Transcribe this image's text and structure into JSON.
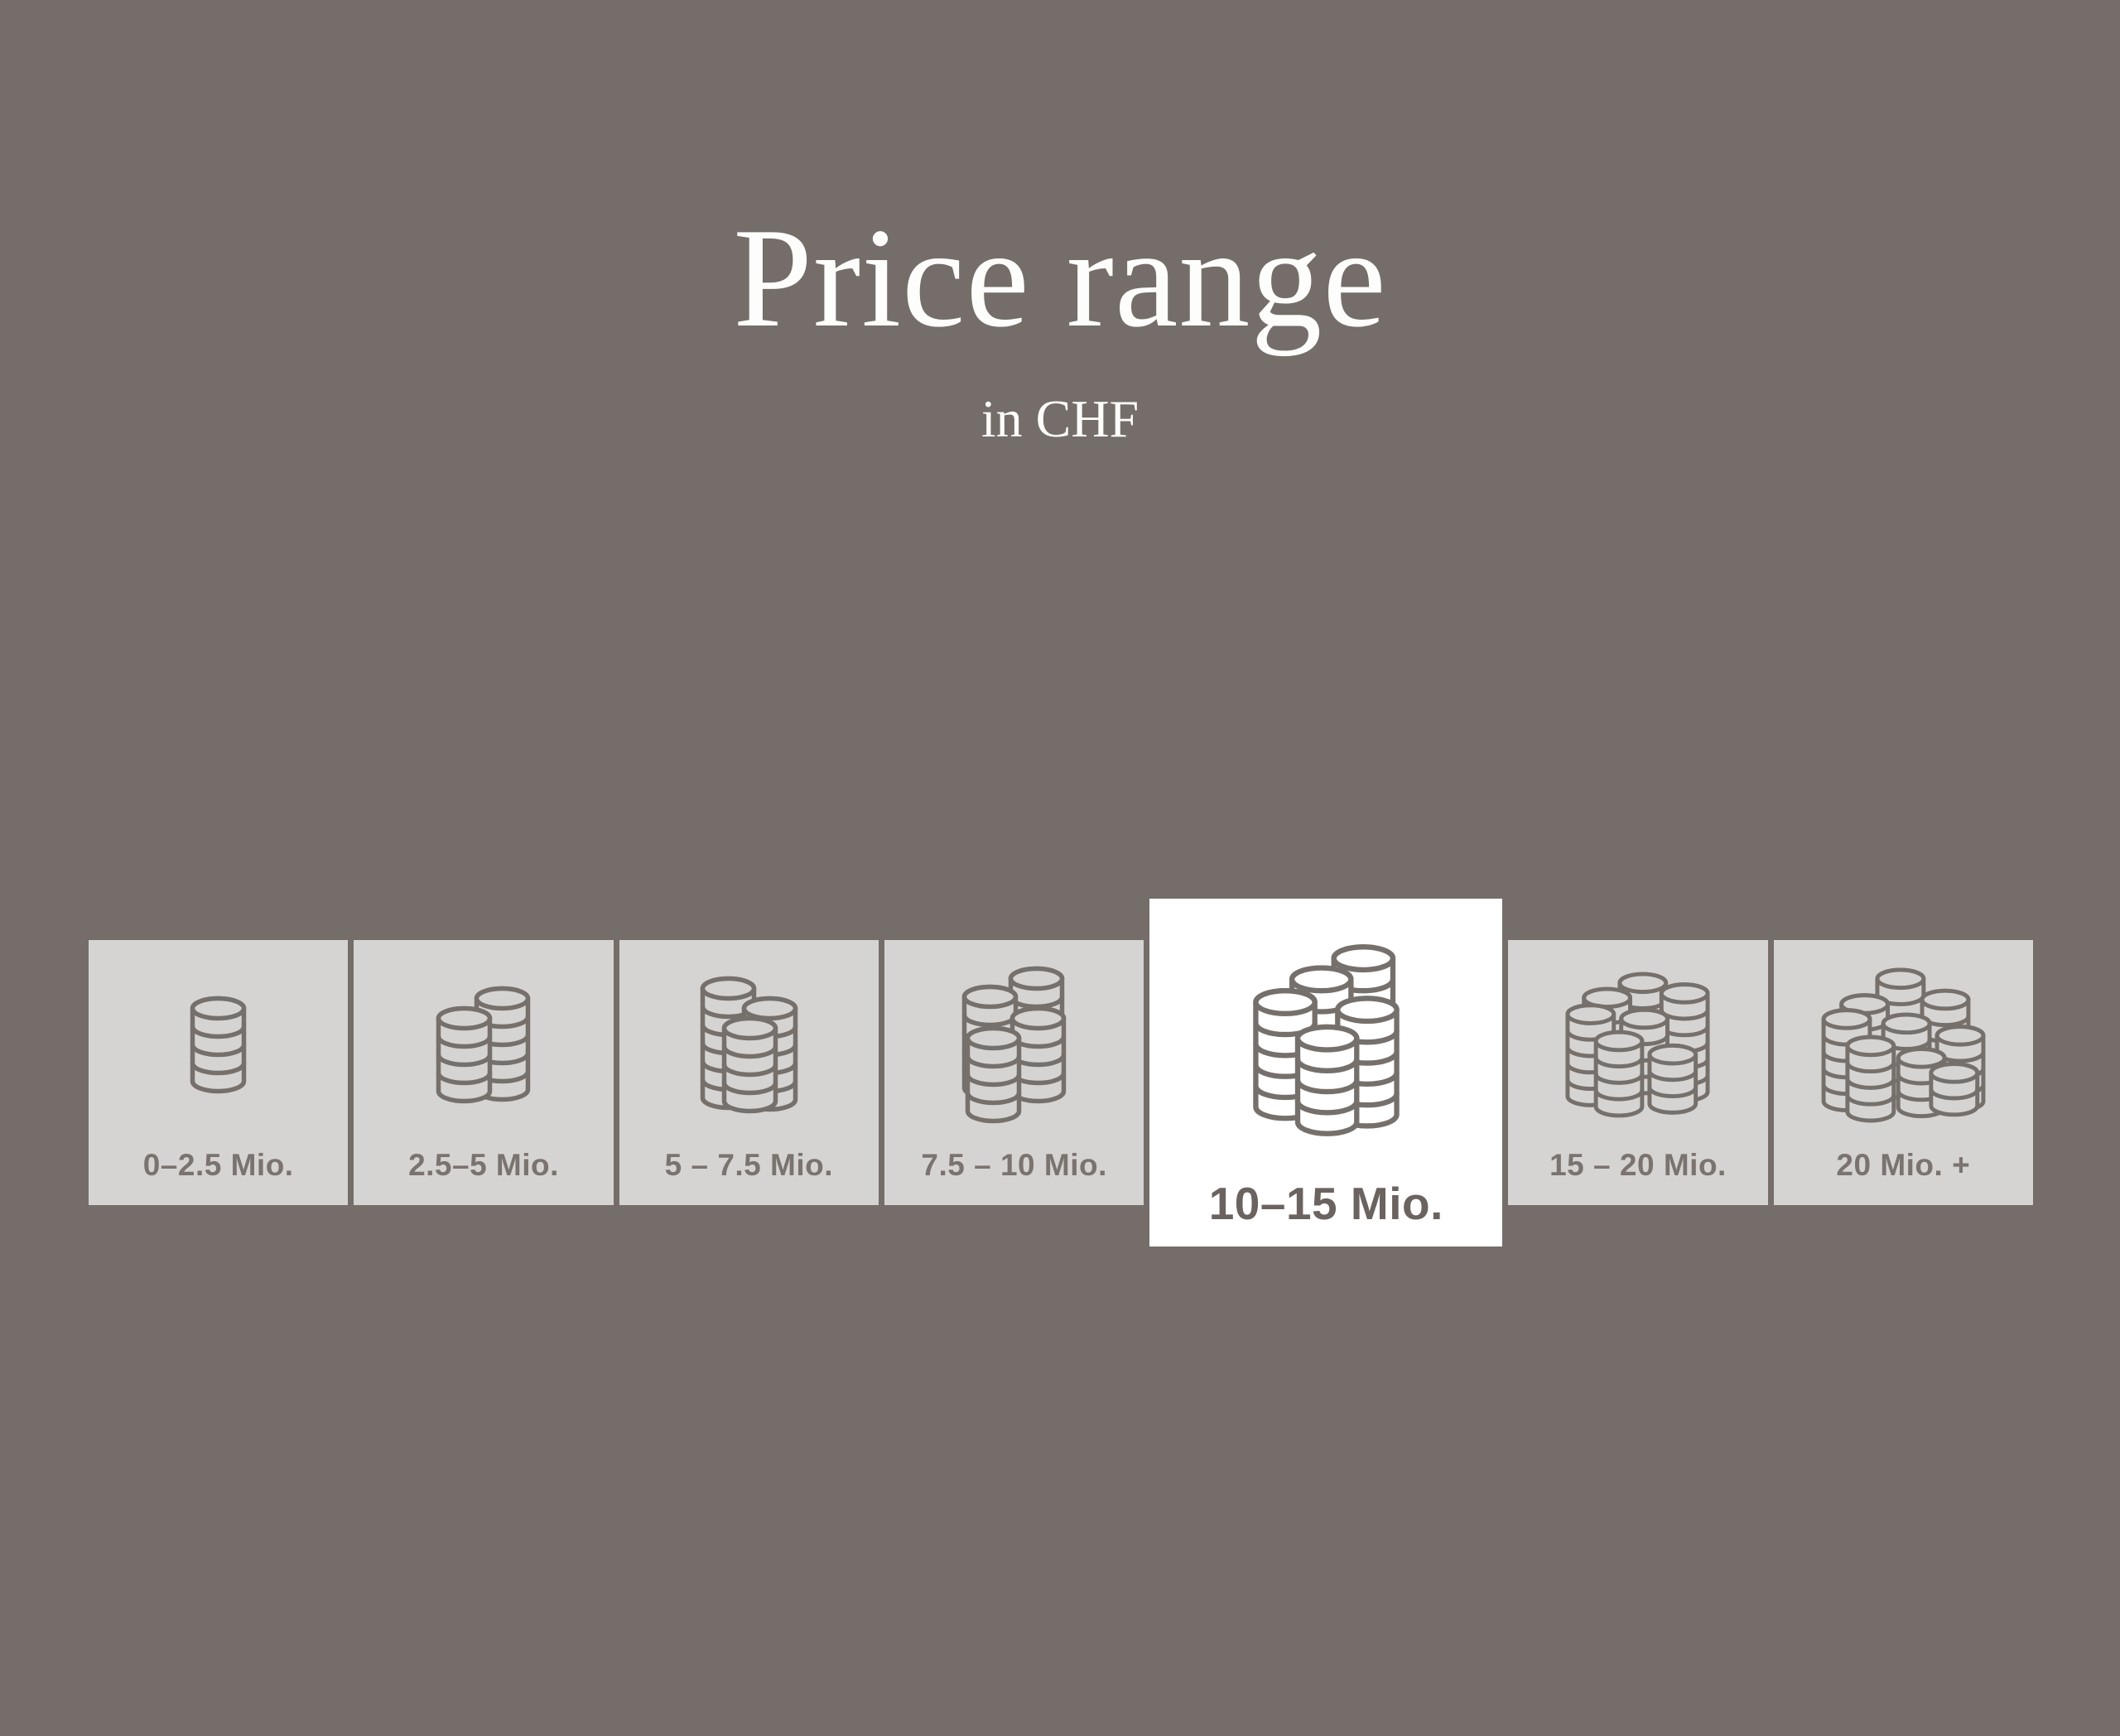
{
  "page": {
    "title": "Price range",
    "subtitle": "in CHF",
    "background_color": "#746d69",
    "text_color": "#fdfdfc"
  },
  "price_filter": {
    "unit": "CHF",
    "selected_value": "10–15 Mio.",
    "selected_index": 4,
    "colors": {
      "tile_background": "#d6d4d2",
      "selected_tile_background": "#ffffff",
      "label": "#7a7370",
      "selected_label": "#6b6360",
      "icon_stroke": "#76706c"
    },
    "options": [
      {
        "label": "0–2.5 Mio.",
        "selected": false,
        "icon": {
          "name": "coin-stacks-icon",
          "stack_count": 1,
          "scale": 1,
          "stacks": [
            [
              0,
              0,
              4
            ]
          ]
        }
      },
      {
        "label": "2.5–5 Mio.",
        "selected": false,
        "icon": {
          "name": "coin-stacks-icon",
          "stack_count": 2,
          "scale": 1,
          "stacks": [
            [
              23,
              -24,
              5
            ],
            [
              -23,
              0,
              4
            ]
          ]
        }
      },
      {
        "label": "5 – 7.5 Mio.",
        "selected": false,
        "icon": {
          "name": "coin-stacks-icon",
          "stack_count": 3,
          "scale": 1,
          "stacks": [
            [
              -24,
              -36,
              6
            ],
            [
              26,
              -12,
              5
            ],
            [
              2,
              12,
              4
            ]
          ]
        }
      },
      {
        "label": "7.5 – 10 Mio.",
        "selected": false,
        "icon": {
          "name": "coin-stacks-icon",
          "stack_count": 4,
          "scale": 1,
          "stacks": [
            [
              30,
              -52,
              5
            ],
            [
              -26,
              -30,
              5
            ],
            [
              32,
              -4,
              4
            ],
            [
              -22,
              20,
              4
            ]
          ]
        }
      },
      {
        "label": "10–15 Mio.",
        "selected": true,
        "icon": {
          "name": "coin-stacks-icon",
          "stack_count": 5,
          "scale": 1.15,
          "stacks": [
            [
              32,
              -62,
              6
            ],
            [
              -12,
              -40,
              3
            ],
            [
              -50,
              -16,
              5
            ],
            [
              36,
              -8,
              5
            ],
            [
              -6,
              22,
              4
            ]
          ]
        }
      },
      {
        "label": "15 – 20 Mio.",
        "selected": false,
        "icon": {
          "name": "coin-stacks-icon",
          "stack_count": 7,
          "scale": 0.9,
          "stacks": [
            [
              4,
              -64,
              5
            ],
            [
              -44,
              -44,
              3
            ],
            [
              60,
              -50,
              6
            ],
            [
              -66,
              -22,
              5
            ],
            [
              6,
              -16,
              4
            ],
            [
              -28,
              14,
              4
            ],
            [
              44,
              32,
              3
            ]
          ]
        }
      },
      {
        "label": "20 Mio. +",
        "selected": false,
        "icon": {
          "name": "coin-stacks-icon",
          "stack_count": 9,
          "scale": 0.9,
          "stacks": [
            [
              -4,
              -78,
              6
            ],
            [
              -52,
              -44,
              3
            ],
            [
              56,
              -50,
              5
            ],
            [
              -76,
              -24,
              5
            ],
            [
              4,
              -18,
              4
            ],
            [
              -44,
              12,
              4
            ],
            [
              76,
              -2,
              4
            ],
            [
              24,
              28,
              3
            ],
            [
              68,
              48,
              2
            ]
          ]
        }
      }
    ]
  }
}
